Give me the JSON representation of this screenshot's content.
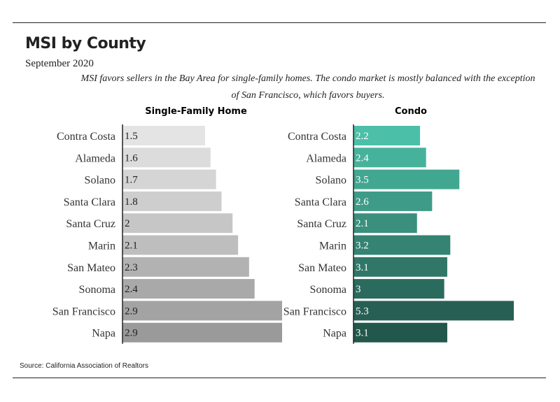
{
  "title": "MSI by County",
  "subtitle": "September 2020",
  "note": "MSI favors sellers in the Bay Area for single-family homes. The condo market is mostly balanced with the exception of San Francisco, which favors buyers.",
  "source": "Source:  California Association of Realtors",
  "colors": {
    "sfh": [
      "#e4e4e4",
      "#dcdcdc",
      "#d5d5d5",
      "#cecece",
      "#c6c6c6",
      "#bebebe",
      "#b2b2b2",
      "#a9a9a9",
      "#a3a3a3",
      "#9a9a9a"
    ],
    "condo": [
      "#4bbfa8",
      "#46b29c",
      "#42a791",
      "#3e9b87",
      "#3a8f7d",
      "#358373",
      "#307768",
      "#2b6b5e",
      "#285f54",
      "#22574b"
    ]
  },
  "chart_data": [
    {
      "type": "bar",
      "orientation": "horizontal",
      "title": "Single-Family Home",
      "categories": [
        "Contra Costa",
        "Alameda",
        "Solano",
        "Santa Clara",
        "Santa Cruz",
        "Marin",
        "San Mateo",
        "Sonoma",
        "San Francisco",
        "Napa"
      ],
      "values": [
        1.5,
        1.6,
        1.7,
        1.8,
        2,
        2.1,
        2.3,
        2.4,
        2.9,
        2.9
      ],
      "xlim": [
        0,
        2.9
      ]
    },
    {
      "type": "bar",
      "orientation": "horizontal",
      "title": "Condo",
      "categories": [
        "Contra Costa",
        "Alameda",
        "Solano",
        "Santa Clara",
        "Santa Cruz",
        "Marin",
        "San Mateo",
        "Sonoma",
        "San Francisco",
        "Napa"
      ],
      "values": [
        2.2,
        2.4,
        3.5,
        2.6,
        2.1,
        3.2,
        3.1,
        3,
        5.3,
        3.1
      ],
      "xlim": [
        0,
        5.3
      ]
    }
  ]
}
